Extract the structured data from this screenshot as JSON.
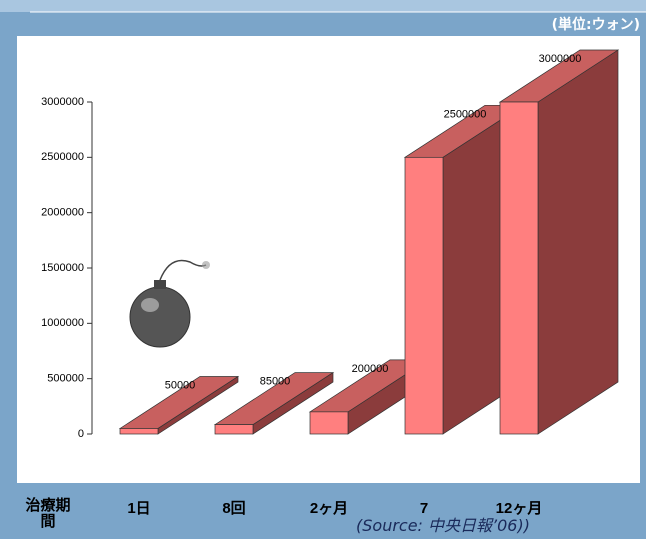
{
  "chart_data": {
    "type": "bar",
    "unit_label": "(単位:ウォン)",
    "x_label": "治療期間",
    "source": "(Source: 中央日報’06))",
    "categories": [
      "1日",
      "8回",
      "2ヶ月",
      "7",
      "12ヶ月"
    ],
    "values": [
      50000,
      85000,
      200000,
      2500000,
      3000000
    ],
    "colors": {
      "front": "#ff7f7f",
      "top": "#c8605f",
      "side": "#8b3c3c"
    },
    "ylim": [
      0,
      3000000
    ],
    "yticks": [
      0,
      500000,
      1000000,
      1500000,
      2000000,
      2500000,
      3000000
    ]
  }
}
